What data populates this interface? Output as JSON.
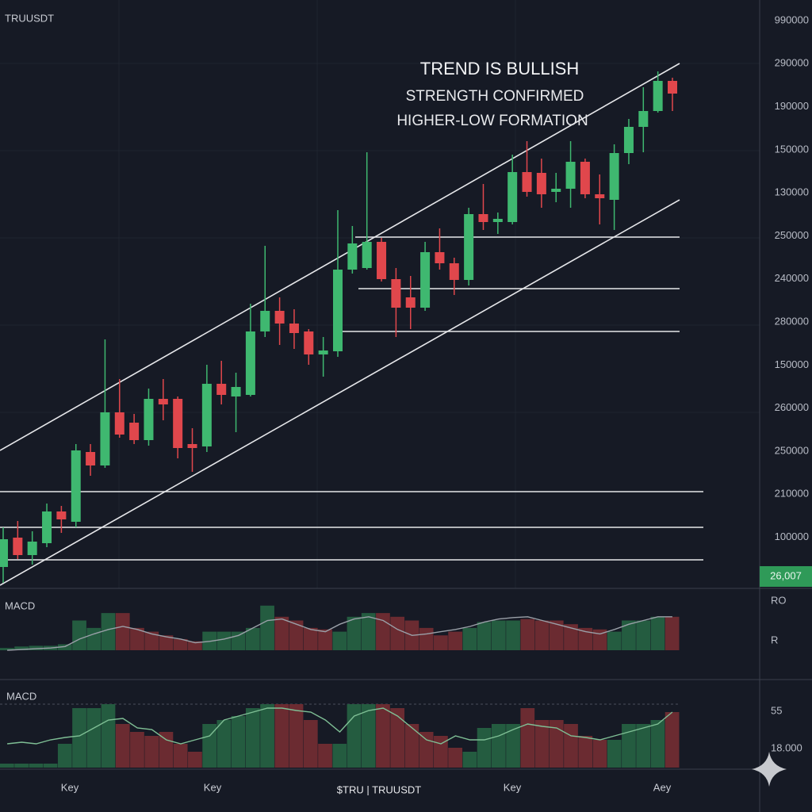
{
  "chart_data": {
    "type": "candlestick",
    "title": "TRUUSDT",
    "annotations": [
      "TREND IS BULLISH",
      "STRENGTH CONFIRMED",
      "HIGHER-LOW FORMATION"
    ],
    "price_labels": [
      "990000",
      "290000",
      "190000",
      "150000",
      "130000",
      "250000",
      "240000",
      "280000",
      "150000",
      "260000",
      "250000",
      "210000",
      "100000"
    ],
    "price_tag": "26,007",
    "ylim": [
      0,
      740
    ],
    "up_color": "#3fb870",
    "down_color": "#e0474c",
    "open": [
      25,
      62,
      40,
      55,
      95,
      82,
      170,
      153,
      220,
      207,
      185,
      237,
      237,
      180,
      177,
      256,
      240,
      242,
      322,
      348,
      332,
      322,
      293,
      297,
      400,
      402,
      435,
      388,
      365,
      352,
      422,
      408,
      387,
      470,
      460,
      460,
      523,
      522,
      498,
      502,
      536,
      495,
      488,
      547,
      580,
      600,
      638
    ],
    "high": [
      75,
      83,
      70,
      105,
      102,
      180,
      180,
      312,
      262,
      218,
      250,
      262,
      240,
      200,
      280,
      285,
      270,
      357,
      430,
      365,
      350,
      325,
      315,
      475,
      455,
      548,
      440,
      402,
      392,
      435,
      452,
      415,
      478,
      508,
      472,
      545,
      562,
      540,
      522,
      562,
      540,
      520,
      558,
      590,
      630,
      650,
      642
    ],
    "low": [
      5,
      35,
      28,
      50,
      68,
      75,
      140,
      150,
      188,
      180,
      178,
      210,
      162,
      145,
      170,
      230,
      195,
      240,
      315,
      305,
      300,
      280,
      265,
      290,
      395,
      400,
      385,
      315,
      325,
      348,
      400,
      368,
      380,
      450,
      445,
      457,
      492,
      478,
      485,
      478,
      490,
      457,
      450,
      533,
      548,
      598,
      600
    ],
    "close": [
      60,
      40,
      57,
      95,
      85,
      172,
      153,
      220,
      192,
      185,
      237,
      230,
      175,
      175,
      256,
      242,
      252,
      322,
      348,
      332,
      320,
      293,
      298,
      400,
      433,
      435,
      388,
      352,
      352,
      422,
      408,
      387,
      470,
      460,
      464,
      523,
      498,
      495,
      502,
      536,
      495,
      490,
      547,
      580,
      600,
      638,
      622
    ],
    "panels": [
      {
        "label": "MACD",
        "right_labels": [
          "RO",
          "R"
        ],
        "ylim": [
          0,
          80
        ],
        "line_color": "#9aa0a8",
        "values": [
          3,
          5,
          6,
          6,
          8,
          40,
          30,
          50,
          50,
          30,
          25,
          20,
          15,
          12,
          25,
          25,
          25,
          30,
          60,
          45,
          40,
          30,
          28,
          25,
          45,
          50,
          50,
          45,
          40,
          30,
          20,
          25,
          30,
          38,
          40,
          40,
          42,
          40,
          40,
          35,
          30,
          28,
          25,
          40,
          40,
          45,
          45
        ],
        "colors": [
          "#245c40",
          "#245c40",
          "#245c40",
          "#245c40",
          "#245c40",
          "#245c40",
          "#245c40",
          "#245c40",
          "#6b2b31",
          "#6b2b31",
          "#6b2b31",
          "#6b2b31",
          "#6b2b31",
          "#6b2b31",
          "#245c40",
          "#245c40",
          "#245c40",
          "#245c40",
          "#245c40",
          "#6b2b31",
          "#6b2b31",
          "#6b2b31",
          "#6b2b31",
          "#245c40",
          "#245c40",
          "#245c40",
          "#6b2b31",
          "#6b2b31",
          "#6b2b31",
          "#6b2b31",
          "#6b2b31",
          "#6b2b31",
          "#245c40",
          "#245c40",
          "#245c40",
          "#245c40",
          "#6b2b31",
          "#6b2b31",
          "#6b2b31",
          "#6b2b31",
          "#6b2b31",
          "#6b2b31",
          "#245c40",
          "#245c40",
          "#245c40",
          "#245c40",
          "#6b2b31"
        ],
        "line": [
          0,
          1,
          2,
          3,
          5,
          15,
          22,
          28,
          32,
          28,
          22,
          18,
          15,
          10,
          12,
          15,
          20,
          30,
          40,
          42,
          35,
          28,
          25,
          35,
          42,
          45,
          40,
          28,
          20,
          22,
          25,
          28,
          32,
          38,
          42,
          44,
          45,
          40,
          35,
          30,
          25,
          22,
          28,
          35,
          40,
          45,
          45
        ]
      },
      {
        "label": "MACD",
        "right_labels": [
          "55",
          "18.000"
        ],
        "ylim": [
          0,
          85
        ],
        "line_color": "#7fbf95",
        "values": [
          5,
          5,
          5,
          5,
          30,
          75,
          75,
          80,
          55,
          45,
          40,
          45,
          30,
          20,
          55,
          60,
          65,
          75,
          80,
          80,
          80,
          60,
          30,
          30,
          80,
          80,
          80,
          75,
          55,
          45,
          40,
          25,
          20,
          50,
          55,
          55,
          75,
          60,
          60,
          55,
          40,
          35,
          35,
          55,
          55,
          60,
          70
        ],
        "colors": [
          "#245c40",
          "#245c40",
          "#245c40",
          "#245c40",
          "#245c40",
          "#245c40",
          "#245c40",
          "#245c40",
          "#6b2b31",
          "#6b2b31",
          "#6b2b31",
          "#6b2b31",
          "#6b2b31",
          "#6b2b31",
          "#245c40",
          "#245c40",
          "#245c40",
          "#245c40",
          "#245c40",
          "#6b2b31",
          "#6b2b31",
          "#6b2b31",
          "#6b2b31",
          "#245c40",
          "#245c40",
          "#245c40",
          "#6b2b31",
          "#6b2b31",
          "#6b2b31",
          "#6b2b31",
          "#6b2b31",
          "#6b2b31",
          "#245c40",
          "#245c40",
          "#245c40",
          "#245c40",
          "#6b2b31",
          "#6b2b31",
          "#6b2b31",
          "#6b2b31",
          "#6b2b31",
          "#6b2b31",
          "#245c40",
          "#245c40",
          "#245c40",
          "#245c40",
          "#6b2b31"
        ],
        "line": [
          30,
          32,
          30,
          35,
          38,
          40,
          50,
          60,
          62,
          50,
          48,
          35,
          30,
          35,
          40,
          60,
          65,
          70,
          75,
          75,
          72,
          70,
          60,
          45,
          65,
          72,
          75,
          65,
          50,
          35,
          30,
          40,
          35,
          35,
          40,
          48,
          55,
          52,
          50,
          40,
          38,
          35,
          40,
          45,
          50,
          55,
          70
        ]
      }
    ],
    "x_labels": [
      "Key",
      "Key",
      "Key",
      "Aey"
    ],
    "footer": "$TRU | TRUUSDT"
  }
}
